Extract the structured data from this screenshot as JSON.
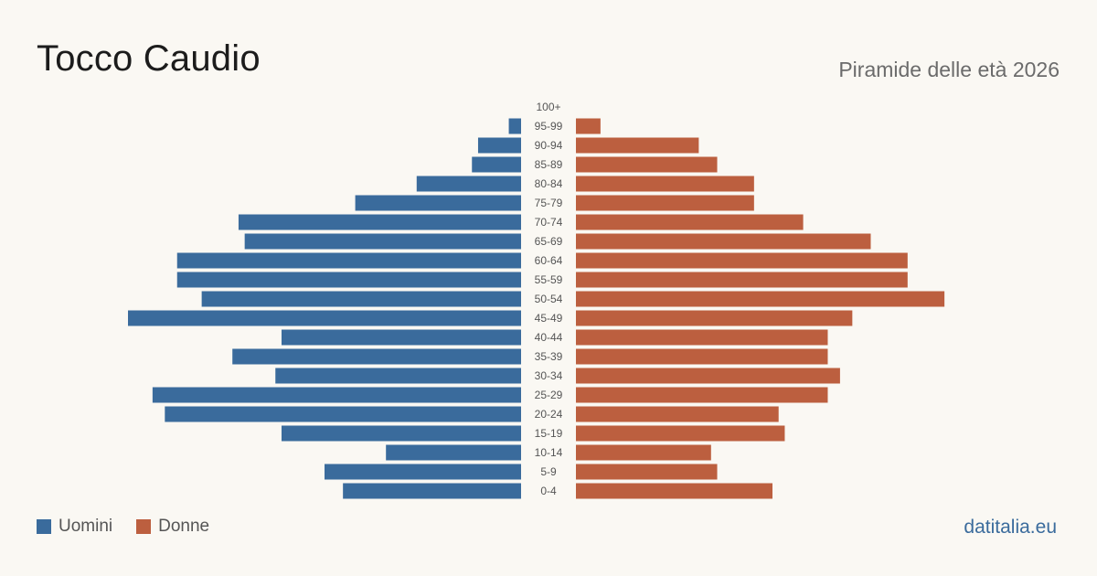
{
  "header": {
    "title": "Tocco Caudio",
    "subtitle": "Piramide delle età 2026"
  },
  "legend": {
    "men_label": "Uomini",
    "women_label": "Donne"
  },
  "brand": "datitalia.eu",
  "colors": {
    "men": "#3a6b9c",
    "women": "#bc5f3f",
    "background": "#faf8f3",
    "label_text": "#555555"
  },
  "chart_data": {
    "type": "bar",
    "orientation": "horizontal",
    "layout": "population-pyramid",
    "categories": [
      "100+",
      "95-99",
      "90-94",
      "85-89",
      "80-84",
      "75-79",
      "70-74",
      "65-69",
      "60-64",
      "55-59",
      "50-54",
      "45-49",
      "40-44",
      "35-39",
      "30-34",
      "25-29",
      "20-24",
      "15-19",
      "10-14",
      "5-9",
      "0-4"
    ],
    "series": [
      {
        "name": "Uomini",
        "values": [
          0,
          2,
          7,
          8,
          17,
          27,
          46,
          45,
          56,
          56,
          52,
          64,
          39,
          47,
          40,
          60,
          58,
          39,
          22,
          32,
          29
        ]
      },
      {
        "name": "Donne",
        "values": [
          0,
          4,
          20,
          23,
          29,
          29,
          37,
          48,
          54,
          54,
          60,
          45,
          41,
          41,
          43,
          41,
          33,
          34,
          22,
          23,
          32
        ]
      }
    ],
    "xlim": [
      0,
      64
    ],
    "grid": false,
    "legend_position": "bottom-left"
  }
}
